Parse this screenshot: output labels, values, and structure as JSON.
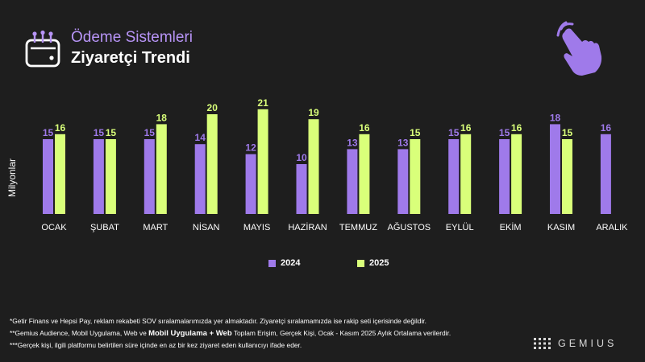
{
  "header": {
    "subtitle": "Ödeme Sistemleri",
    "title": "Ziyaretçi Trendi"
  },
  "colors": {
    "series_2024": "#9f7aea",
    "series_2025": "#d9ff7a",
    "background": "#1e1e1e"
  },
  "chart_data": {
    "type": "bar",
    "title": "Ziyaretçi Trendi",
    "xlabel": "",
    "ylabel": "Milyonlar",
    "ylim": [
      0,
      22
    ],
    "grid": false,
    "legend_position": "bottom-center",
    "categories": [
      "OCAK",
      "ŞUBAT",
      "MART",
      "NİSAN",
      "MAYIS",
      "HAZİRAN",
      "TEMMUZ",
      "AĞUSTOS",
      "EYLÜL",
      "EKİM",
      "KASIM",
      "ARALIK"
    ],
    "series": [
      {
        "name": "2024",
        "color": "#9f7aea",
        "values": [
          15,
          15,
          15,
          14,
          12,
          10,
          13,
          13,
          15,
          15,
          18,
          16
        ]
      },
      {
        "name": "2025",
        "color": "#d9ff7a",
        "values": [
          16,
          15,
          18,
          20,
          21,
          19,
          16,
          15,
          16,
          16,
          15,
          null
        ]
      }
    ]
  },
  "footnotes": {
    "line1": "*Getir Finans ve Hepsi Pay, reklam rekabeti SOV sıralamalarımızda yer almaktadır. Ziyaretçi sıralamamızda ise rakip seti içerisinde değildir.",
    "line2_before": "**Gemius Audience, Mobil Uygulama, Web ve",
    "line2_bold": "Mobil Uygulama + Web",
    "line2_after": "Toplam Erişim, Gerçek Kişi, Ocak -  Kasım  2025 Aylık Ortalama verilerdir.",
    "line3": "***Gerçek kişi, ilgili platformu belirtilen süre içinde en az bir kez ziyaret eden kullanıcıyı ifade eder."
  },
  "logo": {
    "text": "GEMIUS"
  }
}
